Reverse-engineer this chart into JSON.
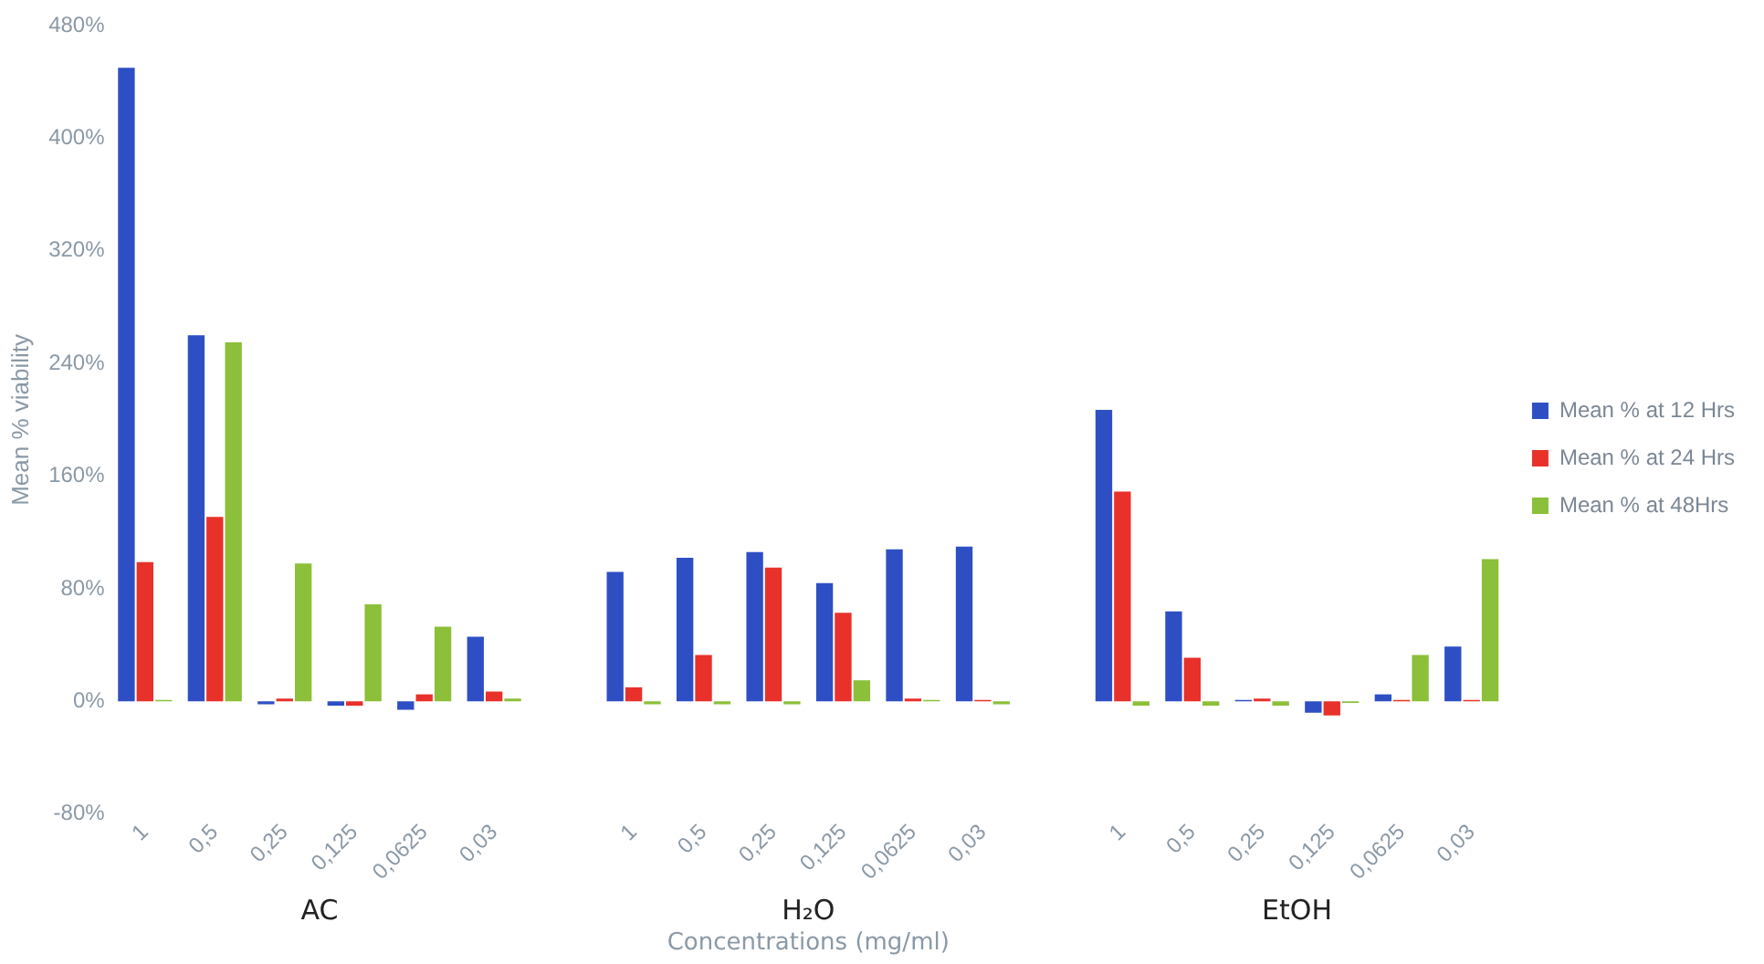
{
  "chart_data": {
    "type": "bar",
    "ylabel": "Mean % viability",
    "xlabel": "Concentrations (mg/ml)",
    "annotations": [
      "AC",
      "H₂O",
      "EtOH"
    ],
    "categories": [
      "1",
      "0,5",
      "0,25",
      "0,125",
      "0,0625",
      "0,03",
      null,
      "1",
      "0,5",
      "0,25",
      "0,125",
      "0,0625",
      "0,03",
      null,
      "1",
      "0,5",
      "0,25",
      "0,125",
      "0,0625",
      "0,03"
    ],
    "series": [
      {
        "name": "Mean % at 12 Hrs",
        "color": "#2e4fc4",
        "values": [
          450,
          260,
          -2,
          -3,
          -6,
          46,
          null,
          92,
          102,
          106,
          84,
          108,
          110,
          null,
          207,
          64,
          1,
          -8,
          5,
          39
        ]
      },
      {
        "name": "Mean % at 24 Hrs",
        "color": "#e8312a",
        "values": [
          99,
          131,
          2,
          -3,
          5,
          7,
          null,
          10,
          33,
          95,
          63,
          2,
          1,
          null,
          149,
          31,
          2,
          -10,
          1,
          1
        ]
      },
      {
        "name": "Mean % at 48Hrs",
        "color": "#8cbf3a",
        "values": [
          1,
          255,
          98,
          69,
          53,
          2,
          null,
          -2,
          -2,
          -2,
          15,
          1,
          -2,
          null,
          -3,
          -3,
          -3,
          -1,
          33,
          101
        ]
      }
    ],
    "ylim": [
      -80,
      480
    ],
    "yticks": [
      {
        "value": -80,
        "label": "-80%"
      },
      {
        "value": 0,
        "label": "0%"
      },
      {
        "value": 80,
        "label": "80%"
      },
      {
        "value": 160,
        "label": "160%"
      },
      {
        "value": 240,
        "label": "240%"
      },
      {
        "value": 320,
        "label": "320%"
      },
      {
        "value": 400,
        "label": "400%"
      },
      {
        "value": 480,
        "label": "480%"
      }
    ],
    "grid": false,
    "legend": "right"
  }
}
